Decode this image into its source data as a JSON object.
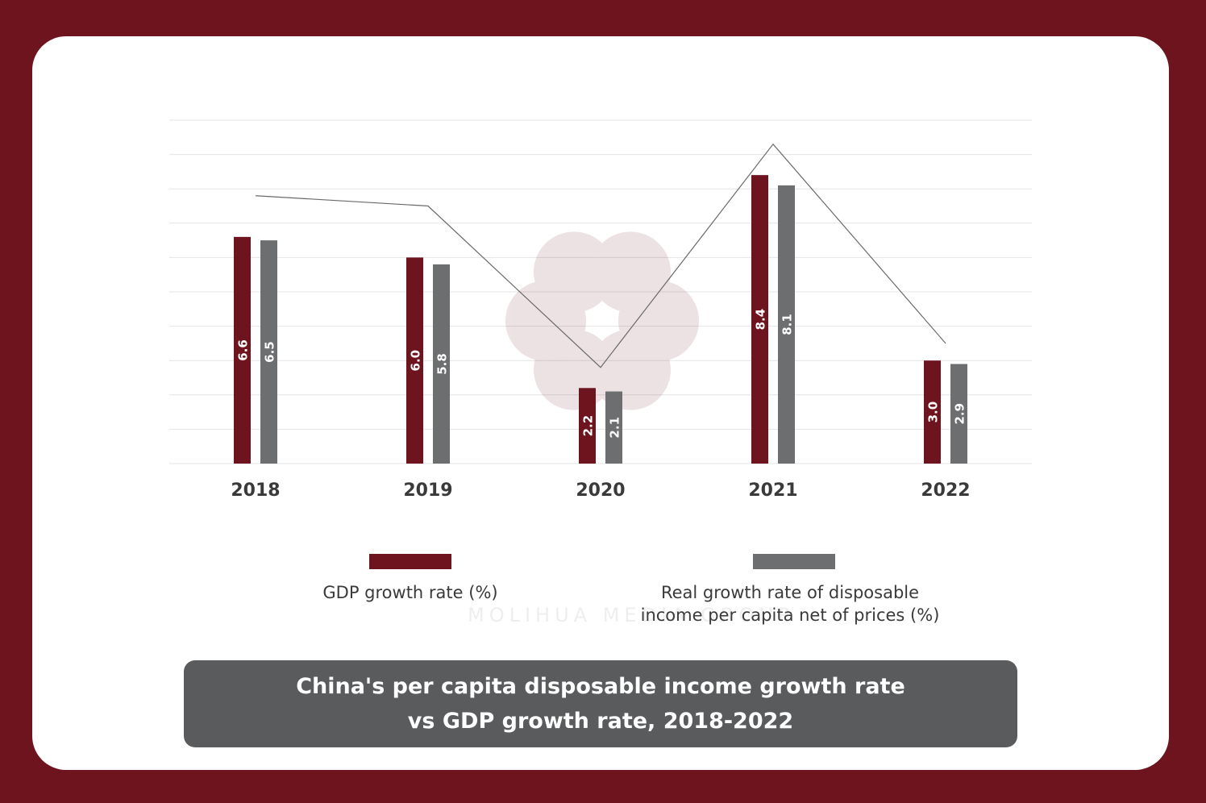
{
  "colors": {
    "frame": "#6d141f",
    "gdp_bar": "#6d141f",
    "income_bar": "#6d6e70",
    "line": "#6a6a6a",
    "title_box": "#5a5b5d"
  },
  "watermark": {
    "text": "MOLIHUA MEDIA GROUP"
  },
  "legend": {
    "gdp_label": "GDP growth rate (%)",
    "income_label_line1": "Real growth rate of disposable",
    "income_label_line2": "income per capita net of prices (%)"
  },
  "title": {
    "line1": "China's per capita disposable income growth rate",
    "line2": "vs GDP growth rate, 2018-2022"
  },
  "chart_data": {
    "type": "bar",
    "categories": [
      "2018",
      "2019",
      "2020",
      "2021",
      "2022"
    ],
    "series": [
      {
        "name": "GDP growth rate (%)",
        "values": [
          6.6,
          6.0,
          2.2,
          8.4,
          3.0
        ]
      },
      {
        "name": "Real growth rate of disposable income per capita net of prices (%)",
        "values": [
          6.5,
          5.8,
          2.1,
          8.1,
          2.9
        ]
      }
    ],
    "overlay_line_values": [
      7.8,
      7.5,
      2.8,
      9.3,
      3.5
    ],
    "ylim": [
      0,
      10
    ],
    "grid": true,
    "legend_position": "bottom"
  }
}
